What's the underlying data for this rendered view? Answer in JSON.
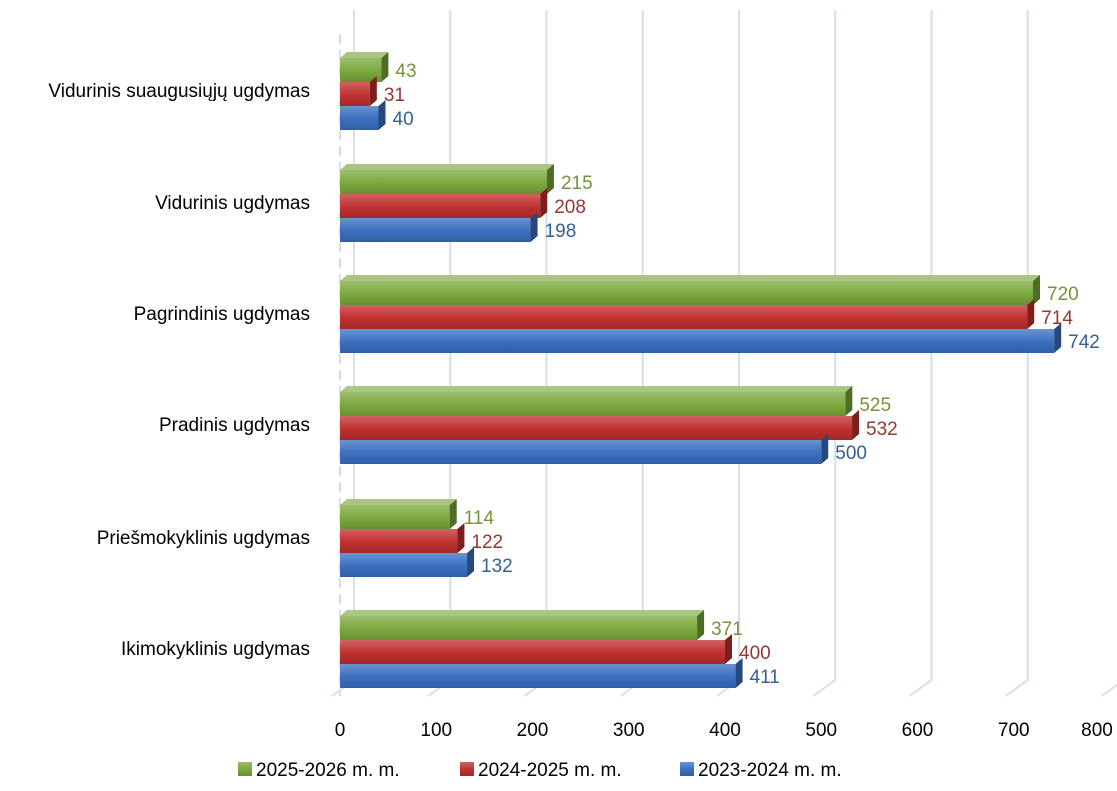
{
  "chart_data": {
    "type": "bar",
    "orientation": "horizontal",
    "categories": [
      "Vidurinis suaugusiųjų ugdymas",
      "Vidurinis ugdymas",
      "Pagrindinis ugdymas",
      "Pradinis ugdymas",
      "Priešmokyklinis ugdymas",
      "Ikimokyklinis ugdymas"
    ],
    "series": [
      {
        "name": "2025-2026 m. m.",
        "color": "#7aa83c",
        "label_color": "#77933c",
        "values": [
          43,
          215,
          720,
          525,
          114,
          371
        ]
      },
      {
        "name": "2024-2025 m. m.",
        "color": "#c0302f",
        "label_color": "#953735",
        "values": [
          31,
          208,
          714,
          532,
          122,
          400
        ]
      },
      {
        "name": "2023-2024 m. m.",
        "color": "#3a6fc0",
        "label_color": "#376092",
        "values": [
          40,
          198,
          742,
          500,
          132,
          411
        ]
      }
    ],
    "xlim": [
      0,
      800
    ],
    "xticks": [
      "0",
      "100",
      "200",
      "300",
      "400",
      "500",
      "600",
      "700",
      "800"
    ],
    "grid": true,
    "legend_position": "bottom"
  }
}
